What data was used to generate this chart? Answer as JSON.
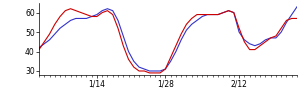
{
  "xlim": [
    0,
    49
  ],
  "ylim": [
    28,
    65
  ],
  "yticks": [
    30,
    40,
    50,
    60
  ],
  "xtick_positions": [
    11,
    24,
    38
  ],
  "xtick_labels": [
    "1/14",
    "1/28",
    "2/12"
  ],
  "blue_y": [
    42,
    44,
    46,
    49,
    52,
    54,
    56,
    57,
    57,
    57,
    58,
    59,
    61,
    62,
    61,
    56,
    48,
    40,
    35,
    32,
    31,
    30,
    30,
    30,
    31,
    35,
    40,
    46,
    51,
    54,
    56,
    58,
    59,
    59,
    59,
    60,
    61,
    60,
    50,
    46,
    44,
    43,
    44,
    46,
    47,
    47,
    50,
    55,
    59,
    63
  ],
  "red_y": [
    41,
    45,
    49,
    54,
    58,
    61,
    62,
    61,
    60,
    59,
    58,
    58,
    60,
    61,
    59,
    52,
    43,
    36,
    32,
    30,
    30,
    29,
    29,
    29,
    31,
    37,
    43,
    49,
    54,
    57,
    59,
    59,
    59,
    59,
    59,
    60,
    61,
    60,
    52,
    45,
    41,
    41,
    43,
    45,
    47,
    48,
    52,
    56,
    57,
    57
  ],
  "blue_color": "#3333cc",
  "red_color": "#cc0000",
  "linewidth": 0.8,
  "bg_color": "#ffffff",
  "tick_color": "#000000",
  "figwidth": 3.0,
  "figheight": 0.96,
  "dpi": 100
}
